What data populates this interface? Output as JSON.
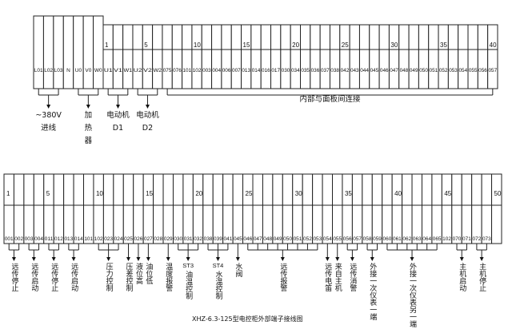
{
  "top": {
    "left_block": [
      "L01",
      "L02",
      "L03",
      "N",
      "U0",
      "V0",
      "W0"
    ],
    "terminals": [
      "U1",
      "V1",
      "W1",
      "U2",
      "V2",
      "W2",
      "075",
      "076",
      "101",
      "102",
      "003",
      "004",
      "006",
      "007",
      "013",
      "014",
      "016",
      "017",
      "030",
      "034",
      "035",
      "036",
      "037",
      "038",
      "042",
      "043",
      "044",
      "045",
      "046",
      "047",
      "048",
      "049",
      "050",
      "051",
      "052",
      "053",
      "054",
      "055",
      "056",
      "057"
    ],
    "numbers": [
      "1",
      "5",
      "10",
      "15",
      "20",
      "25",
      "30",
      "35",
      "40"
    ],
    "annotations": [
      {
        "terminals": [
          "L01",
          "L02",
          "L03"
        ],
        "lines": [
          "~380V",
          "进线"
        ],
        "arrow": true
      },
      {
        "terminals": [
          "U0",
          "V0",
          "W0"
        ],
        "lines": [
          "加",
          "热",
          "器"
        ],
        "arrow": true
      },
      {
        "terminals": [
          "U1",
          "V1",
          "W1"
        ],
        "lines": [
          "电动机",
          "D1"
        ],
        "arrow": true
      },
      {
        "terminals": [
          "U2",
          "V2",
          "W2"
        ],
        "lines": [
          "电动机",
          "D2"
        ],
        "arrow": true
      },
      {
        "terminals": [
          "075",
          "057"
        ],
        "span": true,
        "lines": [
          "内部与面板间连接"
        ],
        "arrow": false
      }
    ]
  },
  "bottom": {
    "terminals": [
      "001",
      "002",
      "003",
      "004",
      "011",
      "012",
      "013",
      "014",
      "101",
      "102",
      "023",
      "024",
      "025",
      "026",
      "027",
      "028",
      "029",
      "030",
      "031",
      "032",
      "038",
      "039",
      "041",
      "045",
      "046",
      "047",
      "048",
      "049",
      "050",
      "051",
      "052",
      "053",
      "054",
      "055",
      "056",
      "057",
      "058",
      "059",
      "060",
      "061",
      "062",
      "063",
      "064",
      "065",
      "102",
      "070",
      "071",
      "072",
      "073",
      ""
    ],
    "numbers": [
      "1",
      "5",
      "10",
      "15",
      "20",
      "25",
      "30",
      "35",
      "40",
      "45",
      "50"
    ],
    "annotations": [
      {
        "idx": [
          0,
          1
        ],
        "prefix": "",
        "text": "远传停止"
      },
      {
        "idx": [
          2,
          3
        ],
        "prefix": "",
        "text": "远传启动"
      },
      {
        "idx": [
          4,
          5
        ],
        "prefix": "",
        "text": "远传停止"
      },
      {
        "idx": [
          6,
          7
        ],
        "prefix": "",
        "text": "远传启动"
      },
      {
        "idx": [
          9,
          10,
          11
        ],
        "prefix": "",
        "text": "压力控制"
      },
      {
        "idx": [
          12
        ],
        "prefix": "",
        "text": "压差控制"
      },
      {
        "idx": [
          13
        ],
        "prefix": "",
        "text": "液位高"
      },
      {
        "idx": [
          14
        ],
        "prefix": "",
        "text": "油位低"
      },
      {
        "idx": [
          16
        ],
        "prefix": "",
        "text": "温度报警"
      },
      {
        "idx": [
          17,
          18,
          19
        ],
        "prefix": "ST3",
        "text": "油温控制"
      },
      {
        "idx": [
          20,
          21,
          22
        ],
        "prefix": "ST4",
        "text": "水温控制"
      },
      {
        "idx": [
          23
        ],
        "prefix": "",
        "text": "水阀"
      },
      {
        "idx": [
          24,
          25,
          26,
          27,
          28,
          29,
          30,
          31
        ],
        "prefix": "",
        "text": "远传报警"
      },
      {
        "idx": [
          32
        ],
        "prefix": "",
        "text": "远传电笛"
      },
      {
        "idx": [
          33
        ],
        "prefix": "",
        "text": "来自主机"
      },
      {
        "idx": [
          34,
          35
        ],
        "prefix": "",
        "text": "远传消警"
      },
      {
        "idx": [
          36,
          37
        ],
        "prefix": "",
        "text": "外接一次仪表一端"
      },
      {
        "idx": [
          38,
          39,
          40,
          41,
          42,
          43
        ],
        "prefix": "",
        "text": "外接一次仪表另一端"
      },
      {
        "idx": [
          45,
          46
        ],
        "prefix": "",
        "text": "主机启动"
      },
      {
        "idx": [
          47,
          48
        ],
        "prefix": "",
        "text": "主机停止"
      }
    ]
  },
  "caption": "XHZ-6.3-125型电控柜外部端子接线图"
}
